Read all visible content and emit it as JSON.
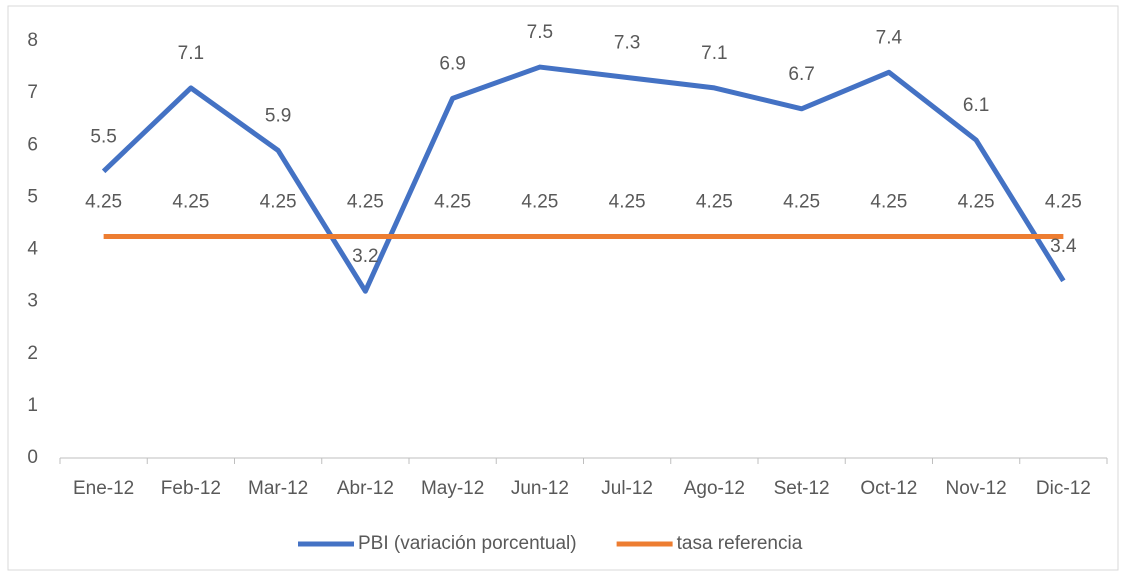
{
  "chart_data": {
    "type": "line",
    "categories": [
      "Ene-12",
      "Feb-12",
      "Mar-12",
      "Abr-12",
      "May-12",
      "Jun-12",
      "Jul-12",
      "Ago-12",
      "Set-12",
      "Oct-12",
      "Nov-12",
      "Dic-12"
    ],
    "series": [
      {
        "name": "PBI (variación porcentual)",
        "color": "#4472c4",
        "values": [
          5.5,
          7.1,
          5.9,
          3.2,
          6.9,
          7.5,
          7.3,
          7.1,
          6.7,
          7.4,
          6.1,
          3.4
        ]
      },
      {
        "name": "tasa referencia",
        "color": "#ed7d31",
        "values": [
          4.25,
          4.25,
          4.25,
          4.25,
          4.25,
          4.25,
          4.25,
          4.25,
          4.25,
          4.25,
          4.25,
          4.25
        ]
      }
    ],
    "ylim": [
      0,
      8
    ],
    "yticks": [
      0,
      1,
      2,
      3,
      4,
      5,
      6,
      7,
      8
    ],
    "grid": false,
    "legend": "bottom",
    "data_labels": true
  }
}
